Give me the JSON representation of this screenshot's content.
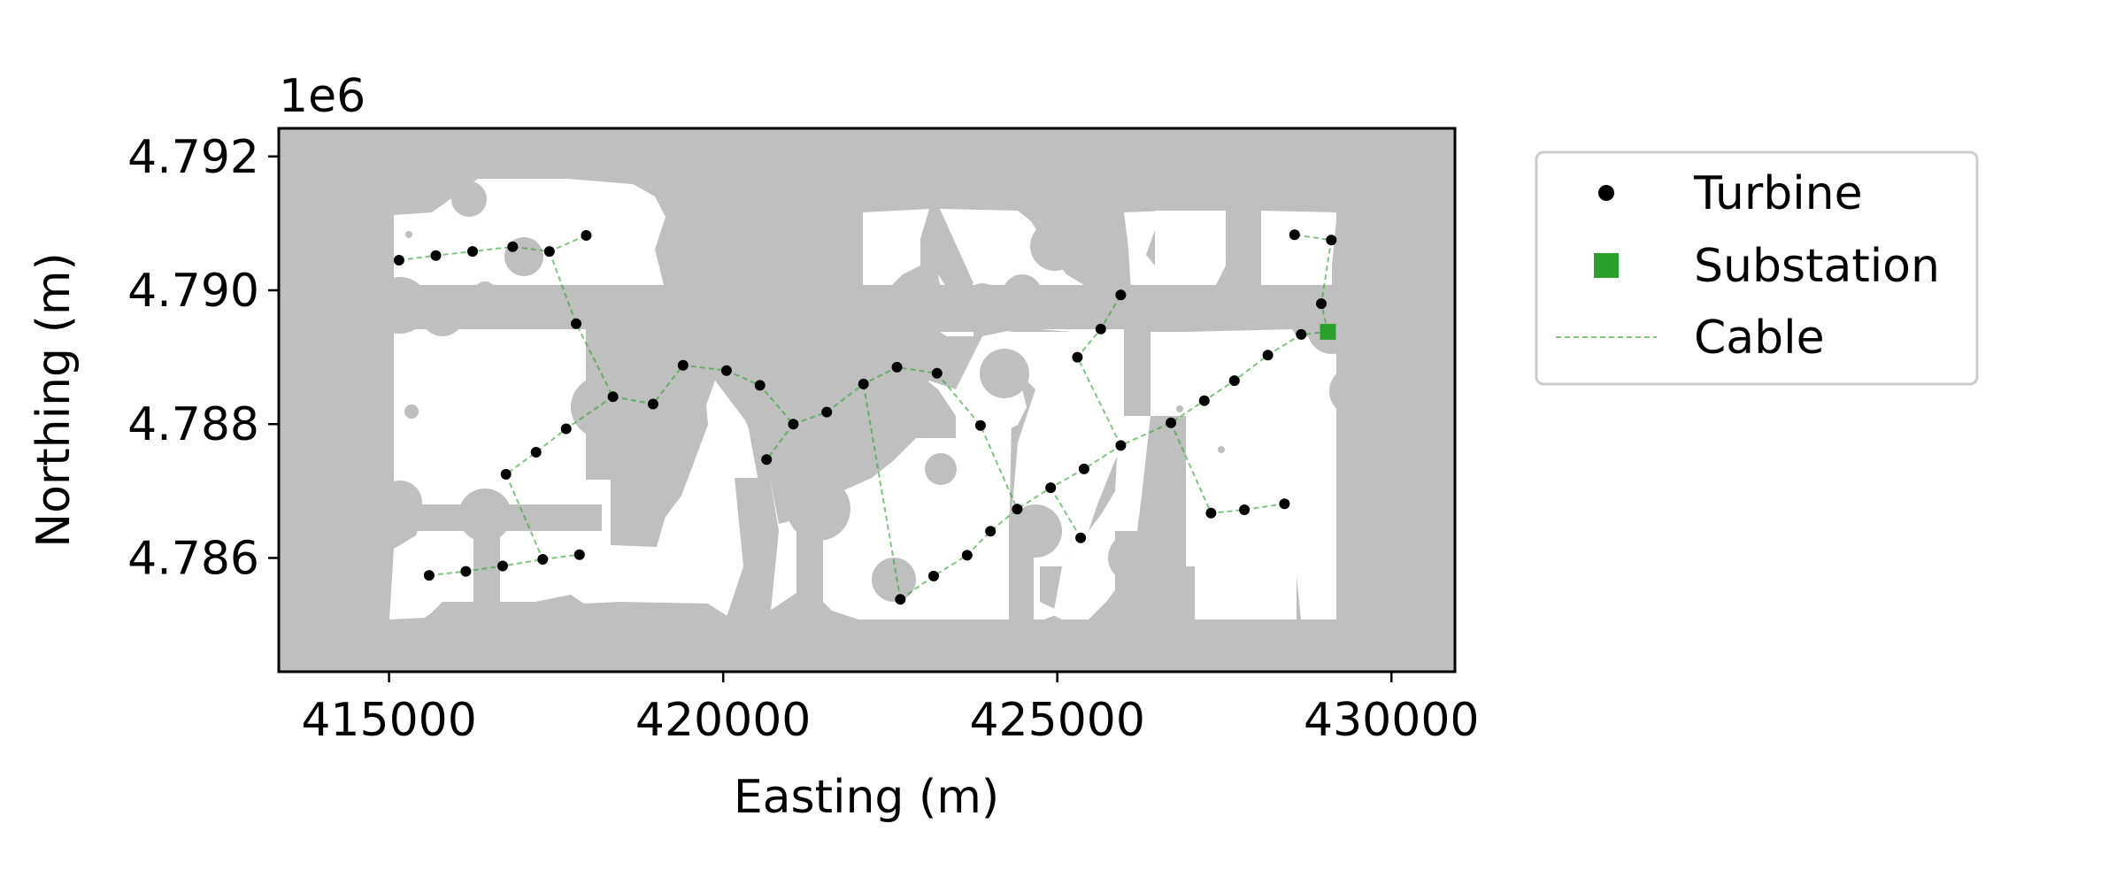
{
  "chart_data": {
    "type": "scatter",
    "title": "",
    "xlabel": "Easting (m)",
    "ylabel": "Northing (m)",
    "y_offset_label": "1e6",
    "xlim": [
      413350,
      430950
    ],
    "ylim": [
      4784300,
      4792420
    ],
    "xticks": [
      415000,
      420000,
      425000,
      430000
    ],
    "xtick_labels": [
      "415000",
      "420000",
      "425000",
      "430000"
    ],
    "yticks": [
      4786000,
      4788000,
      4790000,
      4792000
    ],
    "ytick_labels": [
      "4.786",
      "4.788",
      "4.790",
      "4.792"
    ],
    "grid": false,
    "legend_position": "outside-right-top",
    "colors": {
      "background": "#bfbfbf",
      "available_area": "#ffffff",
      "turbine": "#000000",
      "substation": "#2ca02c",
      "cable": "#2ca02c"
    },
    "legend": [
      {
        "label": "Turbine",
        "marker": "circle"
      },
      {
        "label": "Substation",
        "marker": "square"
      },
      {
        "label": "Cable",
        "marker": "dashed-line"
      }
    ],
    "substation": {
      "x": 429050,
      "y": 4789380
    },
    "turbines": [
      [
        415150,
        4790450
      ],
      [
        415700,
        4790520
      ],
      [
        416250,
        4790580
      ],
      [
        416850,
        4790650
      ],
      [
        417400,
        4790580
      ],
      [
        417950,
        4790820
      ],
      [
        417800,
        4789500
      ],
      [
        418350,
        4788410
      ],
      [
        418950,
        4788300
      ],
      [
        419400,
        4788880
      ],
      [
        420050,
        4788800
      ],
      [
        420550,
        4788580
      ],
      [
        421050,
        4788000
      ],
      [
        420650,
        4787470
      ],
      [
        421550,
        4788180
      ],
      [
        422100,
        4788600
      ],
      [
        422600,
        4788850
      ],
      [
        423200,
        4788760
      ],
      [
        423850,
        4787980
      ],
      [
        417650,
        4787930
      ],
      [
        417200,
        4787580
      ],
      [
        416750,
        4787250
      ],
      [
        415600,
        4785740
      ],
      [
        416150,
        4785800
      ],
      [
        416700,
        4785880
      ],
      [
        417300,
        4785980
      ],
      [
        417850,
        4786050
      ],
      [
        422650,
        4785380
      ],
      [
        423150,
        4785730
      ],
      [
        423650,
        4786040
      ],
      [
        424000,
        4786400
      ],
      [
        424400,
        4786730
      ],
      [
        424900,
        4787050
      ],
      [
        425400,
        4787330
      ],
      [
        425950,
        4787680
      ],
      [
        425350,
        4786300
      ],
      [
        426700,
        4788020
      ],
      [
        427200,
        4788350
      ],
      [
        427650,
        4788650
      ],
      [
        428150,
        4789030
      ],
      [
        428650,
        4789340
      ],
      [
        428950,
        4789800
      ],
      [
        429100,
        4790750
      ],
      [
        428550,
        4790830
      ],
      [
        425950,
        4789930
      ],
      [
        425650,
        4789420
      ],
      [
        425300,
        4789000
      ],
      [
        427300,
        4786670
      ],
      [
        427800,
        4786720
      ],
      [
        428400,
        4786810
      ]
    ],
    "cables": [
      [
        [
          415150,
          4790450
        ],
        [
          415700,
          4790520
        ],
        [
          416250,
          4790580
        ],
        [
          416850,
          4790650
        ],
        [
          417400,
          4790580
        ],
        [
          417950,
          4790820
        ]
      ],
      [
        [
          417400,
          4790580
        ],
        [
          417800,
          4789500
        ],
        [
          418350,
          4788410
        ],
        [
          418950,
          4788300
        ],
        [
          419400,
          4788880
        ],
        [
          420050,
          4788800
        ],
        [
          420550,
          4788580
        ],
        [
          421050,
          4788000
        ]
      ],
      [
        [
          421050,
          4788000
        ],
        [
          420650,
          4787470
        ]
      ],
      [
        [
          421050,
          4788000
        ],
        [
          421550,
          4788180
        ],
        [
          422100,
          4788600
        ],
        [
          422600,
          4788850
        ],
        [
          423200,
          4788760
        ],
        [
          423850,
          4787980
        ],
        [
          424400,
          4786730
        ]
      ],
      [
        [
          418350,
          4788410
        ],
        [
          417650,
          4787930
        ],
        [
          417200,
          4787580
        ],
        [
          416750,
          4787250
        ],
        [
          417300,
          4785980
        ]
      ],
      [
        [
          415600,
          4785740
        ],
        [
          416150,
          4785800
        ],
        [
          416700,
          4785880
        ],
        [
          417300,
          4785980
        ],
        [
          417850,
          4786050
        ]
      ],
      [
        [
          422650,
          4785380
        ],
        [
          423150,
          4785730
        ],
        [
          423650,
          4786040
        ],
        [
          424000,
          4786400
        ],
        [
          424400,
          4786730
        ],
        [
          424900,
          4787050
        ],
        [
          425400,
          4787330
        ],
        [
          425950,
          4787680
        ],
        [
          426700,
          4788020
        ],
        [
          427200,
          4788350
        ],
        [
          427650,
          4788650
        ],
        [
          428150,
          4789030
        ],
        [
          428650,
          4789340
        ],
        [
          429050,
          4789380
        ]
      ],
      [
        [
          424900,
          4787050
        ],
        [
          425350,
          4786300
        ]
      ],
      [
        [
          429050,
          4789380
        ],
        [
          428950,
          4789800
        ],
        [
          429100,
          4790750
        ],
        [
          428550,
          4790830
        ]
      ],
      [
        [
          425950,
          4787680
        ],
        [
          425300,
          4789000
        ],
        [
          425650,
          4789420
        ],
        [
          425950,
          4789930
        ]
      ],
      [
        [
          426700,
          4788020
        ],
        [
          427300,
          4786670
        ],
        [
          427800,
          4786720
        ],
        [
          428400,
          4786810
        ]
      ],
      [
        [
          422650,
          4785380
        ],
        [
          422100,
          4788600
        ]
      ]
    ]
  }
}
